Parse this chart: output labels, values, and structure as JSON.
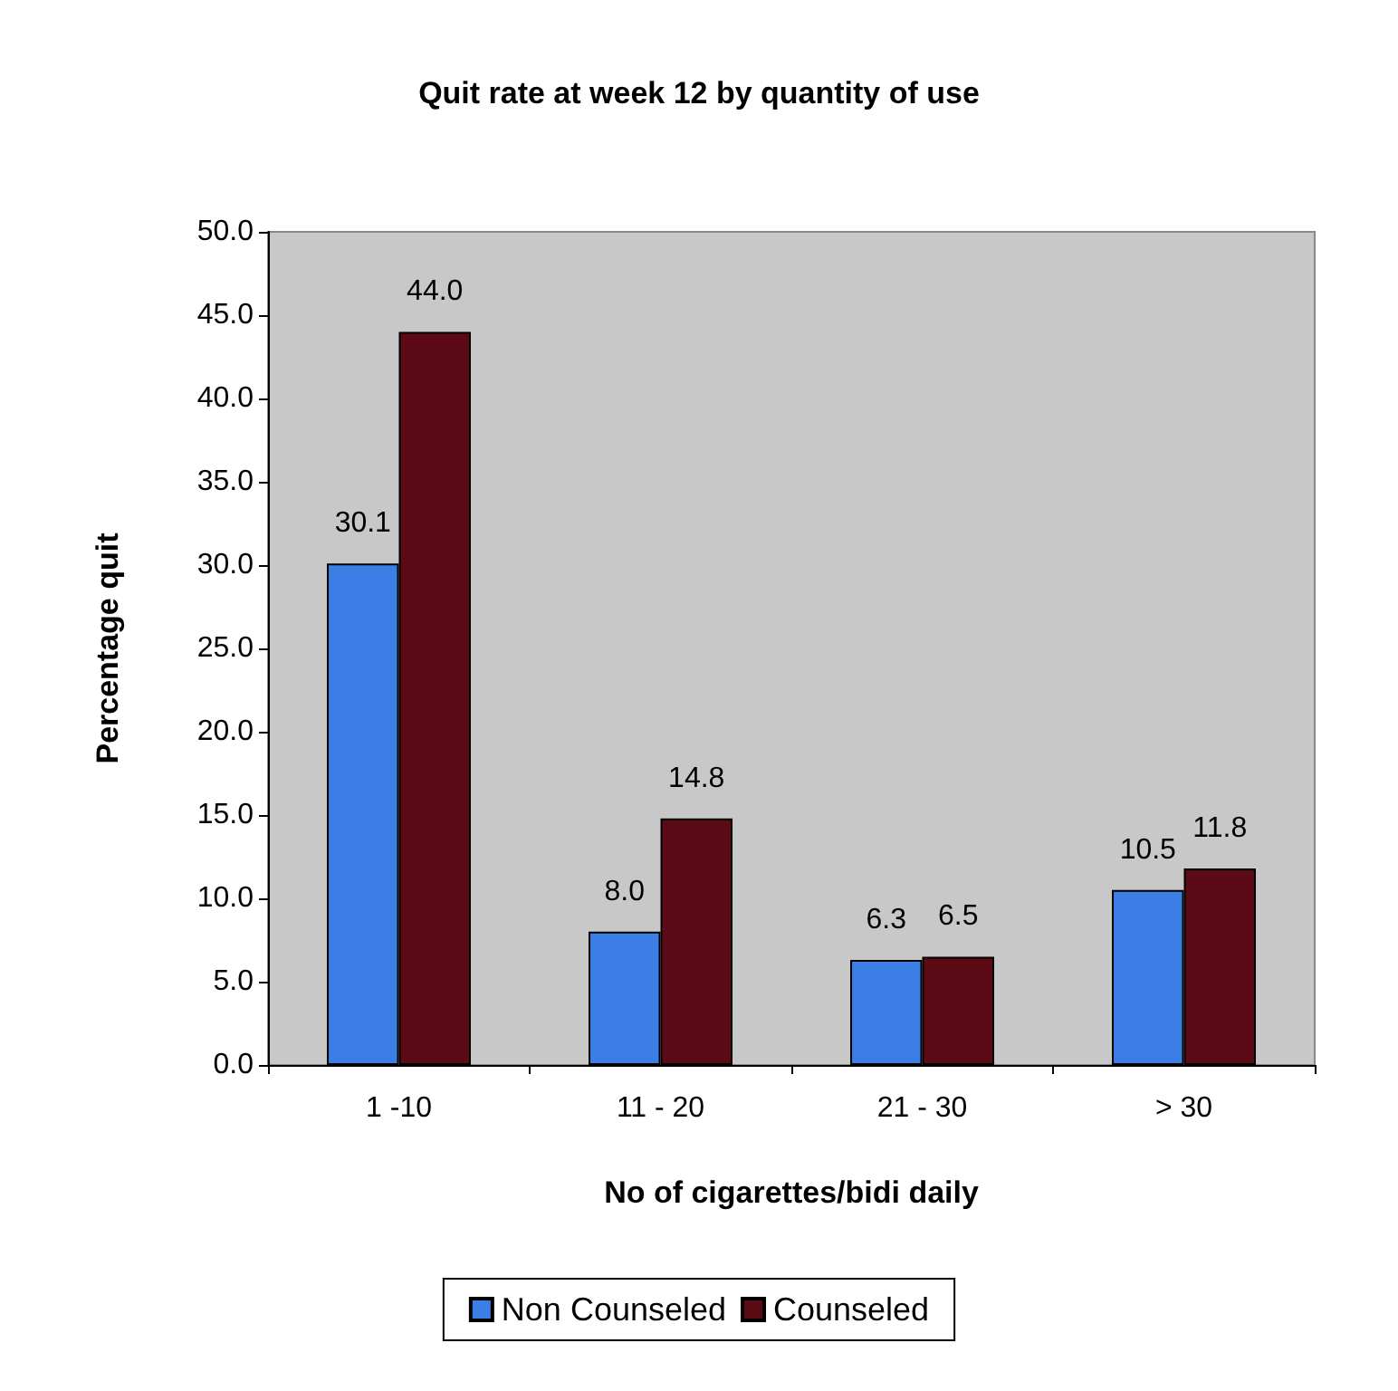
{
  "chart_data": {
    "type": "bar",
    "title": "Quit rate at week 12 by quantity of use",
    "xlabel": "No of cigarettes/bidi daily",
    "ylabel": "Percentage quit",
    "categories": [
      "1 -10",
      "11 - 20",
      "21 - 30",
      "> 30"
    ],
    "series": [
      {
        "name": "Non Counseled",
        "color": "#3b7fe6",
        "values": [
          30.1,
          8.0,
          6.3,
          10.5
        ],
        "value_labels": [
          "30.1",
          "8.0",
          "6.3",
          "10.5"
        ]
      },
      {
        "name": "Counseled",
        "color": "#5c0a16",
        "values": [
          44.0,
          14.8,
          6.5,
          11.8
        ],
        "value_labels": [
          "44.0",
          "14.8",
          "6.5",
          "11.8"
        ]
      }
    ],
    "ylim": [
      0,
      50
    ],
    "yticks": [
      {
        "value": 0,
        "label": "0.0"
      },
      {
        "value": 5,
        "label": "5.0"
      },
      {
        "value": 10,
        "label": "10.0"
      },
      {
        "value": 15,
        "label": "15.0"
      },
      {
        "value": 20,
        "label": "20.0"
      },
      {
        "value": 25,
        "label": "25.0"
      },
      {
        "value": 30,
        "label": "30.0"
      },
      {
        "value": 35,
        "label": "35.0"
      },
      {
        "value": 40,
        "label": "40.0"
      },
      {
        "value": 45,
        "label": "45.0"
      },
      {
        "value": 50,
        "label": "50.0"
      }
    ],
    "grid": false,
    "legend": "bottom"
  }
}
